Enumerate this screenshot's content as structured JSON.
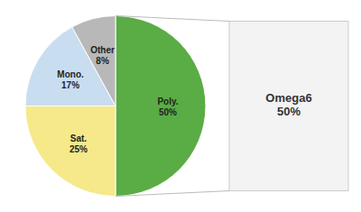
{
  "chart_data": {
    "type": "pie",
    "categories": [
      "Poly.",
      "Sat.",
      "Mono.",
      "Other"
    ],
    "values": [
      50,
      25,
      17,
      8
    ],
    "value_labels": [
      "50%",
      "25%",
      "17%",
      "8%"
    ],
    "colors": [
      "#5aac44",
      "#f5e98a",
      "#c9ddf0",
      "#b8b8b8"
    ],
    "data_labels": true,
    "annotations": [
      "Omega6\n50%"
    ]
  }
}
